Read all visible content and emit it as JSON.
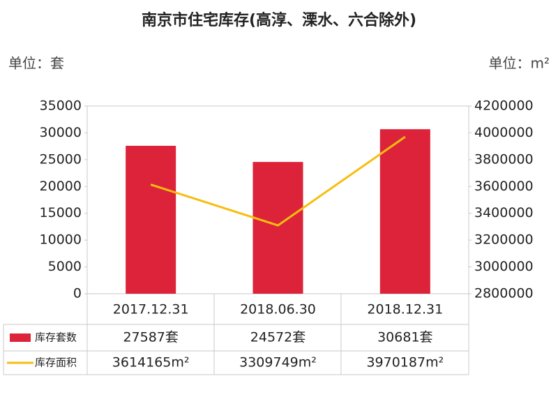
{
  "chart_data": {
    "type": "bar",
    "title": "南京市住宅库存(高淳、溧水、六合除外)",
    "y_label": "单位：套",
    "y2_label": "单位：m²",
    "categories": [
      "2017.12.31",
      "2018.06.30",
      "2018.12.31"
    ],
    "series": [
      {
        "name": "库存套数",
        "type": "bar",
        "color": "#dc2339",
        "values": [
          27587,
          24572,
          30681
        ],
        "value_labels": [
          "27587套",
          "24572套",
          "30681套"
        ]
      },
      {
        "name": "库存面积",
        "type": "line",
        "axis": "y2",
        "color": "#f7be0f",
        "values": [
          3614165,
          3309749,
          3970187
        ],
        "value_labels": [
          "3614165m²",
          "3309749m²",
          "3970187m²"
        ]
      }
    ],
    "ylim": [
      0,
      35000
    ],
    "yticks": [
      0,
      5000,
      10000,
      15000,
      20000,
      25000,
      30000,
      35000
    ],
    "y2lim": [
      2800000,
      4200000
    ],
    "y2ticks": [
      2800000,
      3000000,
      3200000,
      3400000,
      3600000,
      3800000,
      4000000,
      4200000
    ]
  }
}
